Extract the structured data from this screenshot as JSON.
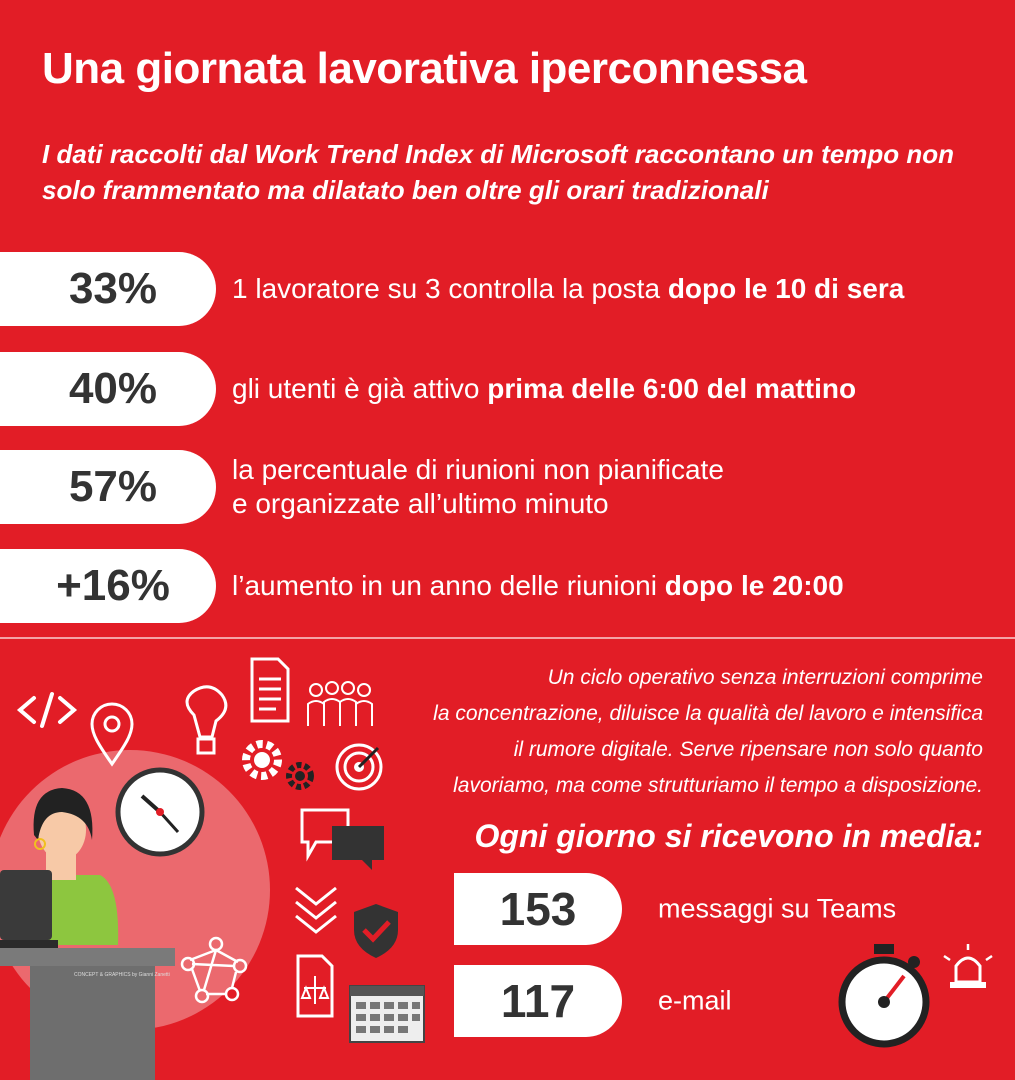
{
  "title": "Una giornata lavorativa iperconnessa",
  "subtitle": "I dati raccolti dal Work Trend Index di Microsoft raccontano un tempo non solo frammentato ma dilatato ben oltre gli orari tradizionali",
  "stats": [
    {
      "value": "33%",
      "text": "1 lavoratore su 3 controlla la posta ",
      "bold": "dopo le 10 di sera"
    },
    {
      "value": "40%",
      "text": "gli utenti è già attivo ",
      "bold": "prima delle 6:00 del mattino"
    },
    {
      "value": "57%",
      "text_line1": "la percentuale di riunioni non pianificate",
      "text_line2": "e organizzate all’ultimo minuto"
    },
    {
      "value": "+16%",
      "text": "l’aumento in un anno delle riunioni ",
      "bold": "dopo le 20:00"
    }
  ],
  "quote": {
    "line1": "Un ciclo operativo senza interruzioni comprime",
    "line2": "la concentrazione, diluisce la qualità del lavoro e intensifica",
    "line3": "il rumore digitale. Serve ripensare non solo quanto",
    "line4": "lavoriamo, ma come strutturiamo il tempo a disposizione."
  },
  "daily": {
    "title": "Ogni giorno si ricevono in media:",
    "items": [
      {
        "value": "153",
        "label": "messaggi su Teams"
      },
      {
        "value": "117",
        "label": "e-mail"
      }
    ]
  },
  "credit": "CONCEPT & GRAPHICS by Gianni Zanetti",
  "colors": {
    "background": "#e21d26",
    "pill": "#ffffff",
    "pill_text": "#333333"
  },
  "icons": [
    "code-icon",
    "location-pin-icon",
    "lightbulb-icon",
    "document-icon",
    "team-icon",
    "gear-icon",
    "target-icon",
    "clock-icon",
    "chat-icon",
    "chevron-down-icon",
    "shield-check-icon",
    "network-icon",
    "legal-document-icon",
    "calendar-icon",
    "stopwatch-icon",
    "alarm-light-icon"
  ]
}
